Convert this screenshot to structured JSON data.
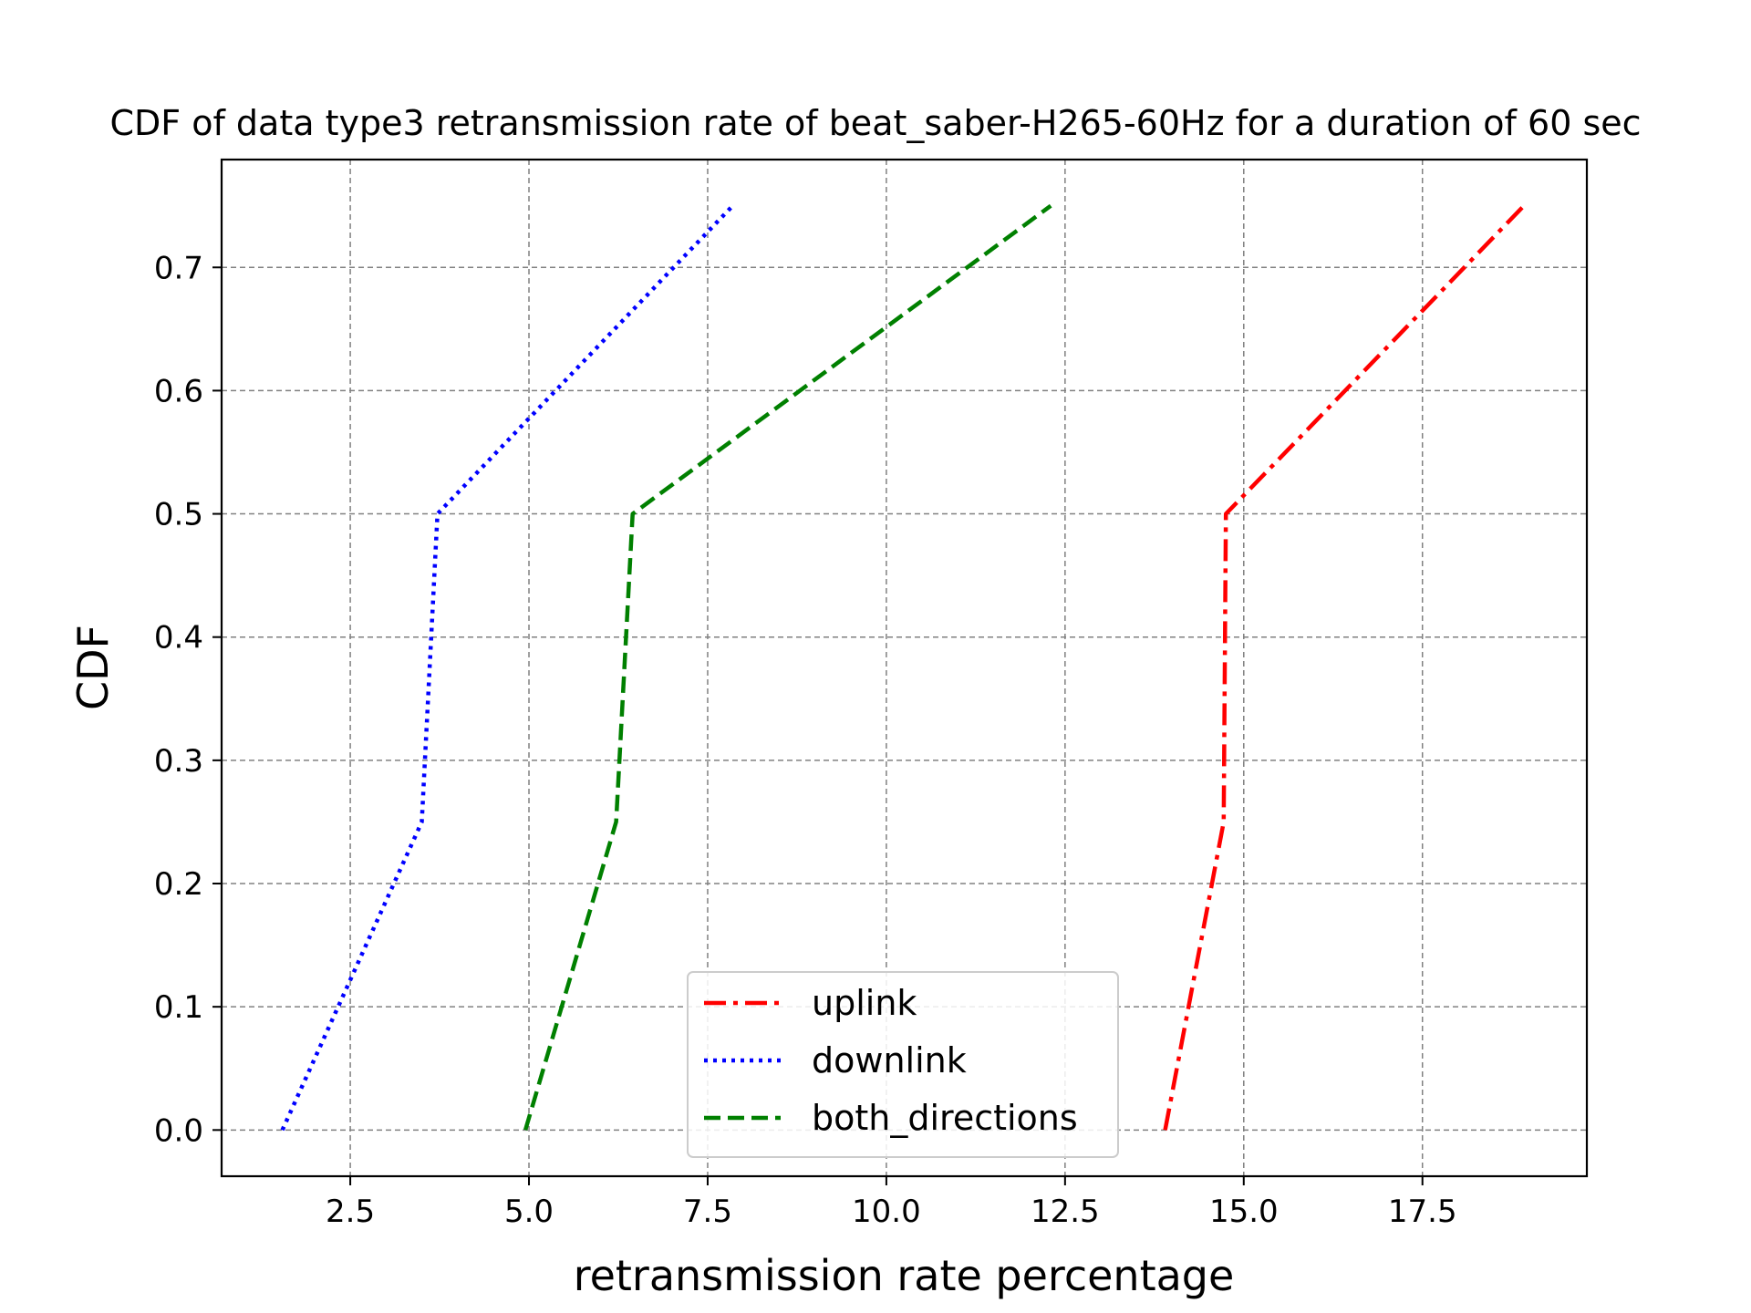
{
  "chart_data": {
    "type": "line",
    "title": "CDF of data type3 retransmission rate of beat_saber-H265-60Hz for a duration of 60 sec",
    "xlabel": "retransmission rate percentage",
    "ylabel": "CDF",
    "xlim": [
      0.7,
      19.8
    ],
    "ylim": [
      -0.0375,
      0.7875
    ],
    "grid": true,
    "legend_position": "bottom-center",
    "xticks": [
      2.5,
      5.0,
      7.5,
      10.0,
      12.5,
      15.0,
      17.5
    ],
    "xtick_labels": [
      "2.5",
      "5.0",
      "7.5",
      "10.0",
      "12.5",
      "15.0",
      "17.5"
    ],
    "yticks": [
      0.0,
      0.1,
      0.2,
      0.3,
      0.4,
      0.5,
      0.6,
      0.7
    ],
    "ytick_labels": [
      "0.0",
      "0.1",
      "0.2",
      "0.3",
      "0.4",
      "0.5",
      "0.6",
      "0.7"
    ],
    "series": [
      {
        "name": "uplink",
        "color": "#ff0000",
        "style": "dashdot",
        "points": [
          [
            13.9,
            0.0
          ],
          [
            14.72,
            0.25
          ],
          [
            14.75,
            0.5
          ],
          [
            18.92,
            0.75
          ]
        ]
      },
      {
        "name": "downlink",
        "color": "#0000ff",
        "style": "dotted",
        "points": [
          [
            1.55,
            0.0
          ],
          [
            3.5,
            0.25
          ],
          [
            3.72,
            0.5
          ],
          [
            7.85,
            0.75
          ]
        ]
      },
      {
        "name": "both_directions",
        "color": "#008000",
        "style": "dashed",
        "points": [
          [
            4.95,
            0.0
          ],
          [
            6.22,
            0.25
          ],
          [
            6.45,
            0.5
          ],
          [
            12.3,
            0.75
          ]
        ]
      }
    ]
  }
}
